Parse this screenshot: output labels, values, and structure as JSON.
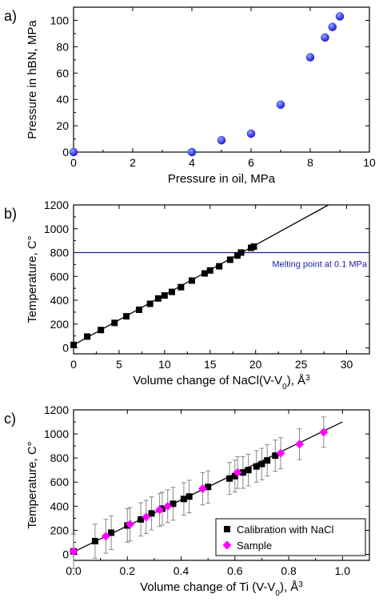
{
  "chart_data": [
    {
      "panel_label": "a)",
      "type": "scatter",
      "xlabel": "Pressure in oil, MPa",
      "ylabel": "Pressure in hBN, MPa",
      "xlim": [
        0,
        10
      ],
      "ylim": [
        0,
        110
      ],
      "xticks": [
        "0",
        "2",
        "4",
        "6",
        "8",
        "10"
      ],
      "yticks": [
        "0",
        "20",
        "40",
        "60",
        "80",
        "100"
      ],
      "grid": false,
      "colors": {
        "marker": "#1f1fd6",
        "marker_highlight": "#8fa8ff"
      },
      "series": [
        {
          "x": [
            0,
            4,
            5,
            6,
            7,
            8,
            8.5,
            8.75,
            9
          ],
          "y": [
            0,
            0,
            9,
            14,
            36,
            72,
            87,
            95,
            103
          ]
        }
      ]
    },
    {
      "panel_label": "b)",
      "type": "scatter",
      "xlabel": "Volume change of NaCl(V-V",
      "xlabel_sub": "0",
      "xlabel_unit": "), Å",
      "xlabel_sup": "3",
      "ylabel": "Temperature, C°",
      "xlim": [
        0,
        32.5
      ],
      "ylim": [
        -50,
        1200
      ],
      "xticks": [
        "0",
        "5",
        "10",
        "15",
        "20",
        "25",
        "30"
      ],
      "yticks": [
        "0",
        "200",
        "400",
        "600",
        "800",
        "1000",
        "1200"
      ],
      "grid": false,
      "annotation": "Melting point at 0.1 MPa",
      "hline": 800,
      "fit_line": {
        "x": [
          0,
          28
        ],
        "y": [
          25,
          1200
        ]
      },
      "colors": {
        "marker": "#000000",
        "hline": "#2020a0",
        "annotation": "#2020a0"
      },
      "series": [
        {
          "x": [
            0,
            1.5,
            3,
            4.5,
            5.8,
            7.2,
            8.4,
            9.3,
            10,
            10.8,
            11.8,
            13,
            14.4,
            15,
            16,
            17.2,
            18,
            18.4,
            19.5,
            19.8
          ],
          "y": [
            25,
            95,
            150,
            210,
            265,
            320,
            370,
            415,
            440,
            470,
            510,
            565,
            625,
            650,
            685,
            740,
            775,
            800,
            840,
            850
          ]
        }
      ]
    },
    {
      "panel_label": "c)",
      "type": "scatter",
      "xlabel": "Volume change of Ti (V-V",
      "xlabel_sub": "0",
      "xlabel_unit": "), Å",
      "xlabel_sup": "3",
      "ylabel": "Temperature, C°",
      "xlim": [
        0,
        1.1
      ],
      "ylim": [
        -50,
        1200
      ],
      "xticks": [
        "0.0",
        "0.2",
        "0.4",
        "0.6",
        "0.8",
        "1.0"
      ],
      "yticks": [
        "0",
        "200",
        "400",
        "600",
        "800",
        "1000",
        "1200"
      ],
      "grid": false,
      "legend_position": "bottom-right",
      "fit_line": {
        "x": [
          0,
          1.0
        ],
        "y": [
          20,
          1100
        ]
      },
      "colors": {
        "calibration": "#000000",
        "sample": "#ff00ff",
        "errorbar": "#888888"
      },
      "series": [
        {
          "name": "Calibration with NaCl",
          "marker": "square",
          "x": [
            0,
            0.08,
            0.14,
            0.2,
            0.25,
            0.29,
            0.33,
            0.37,
            0.41,
            0.43,
            0.5,
            0.58,
            0.6,
            0.63,
            0.65,
            0.68,
            0.7,
            0.72,
            0.75
          ],
          "y": [
            25,
            110,
            180,
            240,
            290,
            340,
            380,
            420,
            460,
            480,
            560,
            630,
            650,
            680,
            700,
            730,
            750,
            780,
            820
          ]
        },
        {
          "name": "Sample",
          "marker": "diamond",
          "x": [
            0,
            0.12,
            0.21,
            0.27,
            0.32,
            0.35,
            0.48,
            0.61,
            0.77,
            0.84,
            0.93
          ],
          "y": [
            25,
            150,
            250,
            310,
            370,
            400,
            545,
            680,
            840,
            915,
            1015
          ]
        }
      ]
    }
  ]
}
